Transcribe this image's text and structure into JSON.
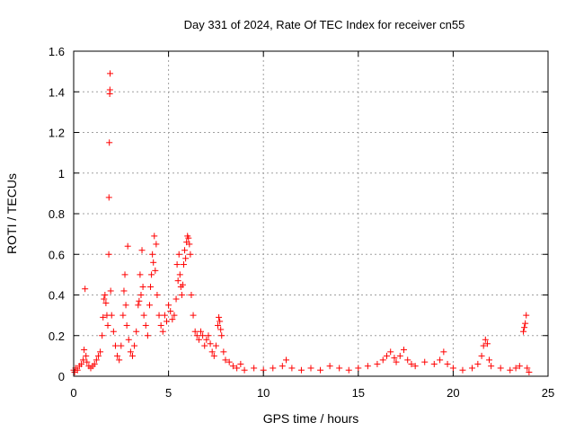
{
  "chart_data": {
    "type": "scatter",
    "title": "Day 331 of 2024, Rate Of TEC Index for receiver cn55",
    "xlabel": "GPS time / hours",
    "ylabel": "ROTI / TECUs",
    "xlim": [
      0,
      25
    ],
    "ylim": [
      0,
      1.6
    ],
    "xticks": [
      "0",
      "5",
      "10",
      "15",
      "20",
      "25"
    ],
    "yticks": [
      "0",
      "0.2",
      "0.4",
      "0.6",
      "0.8",
      "1",
      "1.2",
      "1.4",
      "1.6"
    ],
    "grid": true,
    "marker": "+",
    "color": "#ff0000",
    "series": [
      {
        "name": "ROTI",
        "points": [
          [
            0.0,
            0.03
          ],
          [
            0.05,
            0.02
          ],
          [
            0.1,
            0.04
          ],
          [
            0.2,
            0.03
          ],
          [
            0.3,
            0.05
          ],
          [
            0.4,
            0.06
          ],
          [
            0.5,
            0.08
          ],
          [
            0.55,
            0.13
          ],
          [
            0.6,
            0.43
          ],
          [
            0.65,
            0.1
          ],
          [
            0.7,
            0.07
          ],
          [
            0.8,
            0.05
          ],
          [
            0.9,
            0.04
          ],
          [
            1.0,
            0.05
          ],
          [
            1.1,
            0.06
          ],
          [
            1.2,
            0.08
          ],
          [
            1.3,
            0.1
          ],
          [
            1.4,
            0.12
          ],
          [
            1.5,
            0.2
          ],
          [
            1.55,
            0.29
          ],
          [
            1.6,
            0.38
          ],
          [
            1.65,
            0.4
          ],
          [
            1.7,
            0.36
          ],
          [
            1.75,
            0.3
          ],
          [
            1.8,
            0.25
          ],
          [
            1.85,
            0.6
          ],
          [
            1.86,
            0.88
          ],
          [
            1.88,
            1.15
          ],
          [
            1.9,
            1.39
          ],
          [
            1.91,
            1.41
          ],
          [
            1.92,
            1.49
          ],
          [
            1.95,
            0.42
          ],
          [
            2.0,
            0.3
          ],
          [
            2.1,
            0.22
          ],
          [
            2.2,
            0.15
          ],
          [
            2.3,
            0.1
          ],
          [
            2.4,
            0.08
          ],
          [
            2.5,
            0.15
          ],
          [
            2.6,
            0.3
          ],
          [
            2.65,
            0.42
          ],
          [
            2.7,
            0.5
          ],
          [
            2.75,
            0.35
          ],
          [
            2.8,
            0.25
          ],
          [
            2.85,
            0.64
          ],
          [
            2.9,
            0.18
          ],
          [
            3.0,
            0.12
          ],
          [
            3.1,
            0.1
          ],
          [
            3.2,
            0.15
          ],
          [
            3.3,
            0.22
          ],
          [
            3.4,
            0.35
          ],
          [
            3.45,
            0.37
          ],
          [
            3.5,
            0.5
          ],
          [
            3.55,
            0.4
          ],
          [
            3.6,
            0.62
          ],
          [
            3.65,
            0.44
          ],
          [
            3.7,
            0.3
          ],
          [
            3.8,
            0.25
          ],
          [
            3.9,
            0.2
          ],
          [
            4.0,
            0.35
          ],
          [
            4.05,
            0.44
          ],
          [
            4.1,
            0.5
          ],
          [
            4.15,
            0.6
          ],
          [
            4.2,
            0.56
          ],
          [
            4.25,
            0.69
          ],
          [
            4.3,
            0.52
          ],
          [
            4.35,
            0.65
          ],
          [
            4.4,
            0.4
          ],
          [
            4.5,
            0.3
          ],
          [
            4.6,
            0.25
          ],
          [
            4.7,
            0.22
          ],
          [
            4.8,
            0.3
          ],
          [
            4.9,
            0.27
          ],
          [
            5.0,
            0.35
          ],
          [
            5.1,
            0.32
          ],
          [
            5.2,
            0.28
          ],
          [
            5.3,
            0.3
          ],
          [
            5.4,
            0.38
          ],
          [
            5.45,
            0.55
          ],
          [
            5.5,
            0.47
          ],
          [
            5.55,
            0.6
          ],
          [
            5.6,
            0.5
          ],
          [
            5.65,
            0.44
          ],
          [
            5.7,
            0.4
          ],
          [
            5.75,
            0.45
          ],
          [
            5.8,
            0.55
          ],
          [
            5.85,
            0.62
          ],
          [
            5.9,
            0.58
          ],
          [
            5.95,
            0.66
          ],
          [
            6.0,
            0.69
          ],
          [
            6.05,
            0.68
          ],
          [
            6.1,
            0.65
          ],
          [
            6.15,
            0.6
          ],
          [
            6.2,
            0.4
          ],
          [
            6.3,
            0.3
          ],
          [
            6.4,
            0.22
          ],
          [
            6.5,
            0.2
          ],
          [
            6.6,
            0.18
          ],
          [
            6.7,
            0.22
          ],
          [
            6.8,
            0.2
          ],
          [
            6.9,
            0.15
          ],
          [
            7.0,
            0.18
          ],
          [
            7.1,
            0.2
          ],
          [
            7.2,
            0.16
          ],
          [
            7.3,
            0.12
          ],
          [
            7.4,
            0.1
          ],
          [
            7.5,
            0.15
          ],
          [
            7.6,
            0.25
          ],
          [
            7.65,
            0.29
          ],
          [
            7.7,
            0.27
          ],
          [
            7.75,
            0.23
          ],
          [
            7.8,
            0.2
          ],
          [
            7.9,
            0.12
          ],
          [
            8.0,
            0.08
          ],
          [
            8.2,
            0.07
          ],
          [
            8.4,
            0.05
          ],
          [
            8.6,
            0.04
          ],
          [
            8.8,
            0.06
          ],
          [
            9.0,
            0.03
          ],
          [
            9.5,
            0.04
          ],
          [
            10.0,
            0.03
          ],
          [
            10.5,
            0.04
          ],
          [
            11.0,
            0.05
          ],
          [
            11.2,
            0.08
          ],
          [
            11.5,
            0.04
          ],
          [
            12.0,
            0.03
          ],
          [
            12.5,
            0.04
          ],
          [
            13.0,
            0.03
          ],
          [
            13.5,
            0.05
          ],
          [
            14.0,
            0.04
          ],
          [
            14.5,
            0.03
          ],
          [
            15.0,
            0.04
          ],
          [
            15.5,
            0.05
          ],
          [
            16.0,
            0.06
          ],
          [
            16.3,
            0.08
          ],
          [
            16.5,
            0.1
          ],
          [
            16.7,
            0.12
          ],
          [
            16.9,
            0.09
          ],
          [
            17.0,
            0.07
          ],
          [
            17.2,
            0.1
          ],
          [
            17.4,
            0.13
          ],
          [
            17.6,
            0.08
          ],
          [
            17.8,
            0.06
          ],
          [
            18.0,
            0.05
          ],
          [
            18.5,
            0.07
          ],
          [
            19.0,
            0.06
          ],
          [
            19.3,
            0.08
          ],
          [
            19.5,
            0.12
          ],
          [
            19.7,
            0.06
          ],
          [
            20.0,
            0.04
          ],
          [
            20.5,
            0.03
          ],
          [
            21.0,
            0.04
          ],
          [
            21.3,
            0.06
          ],
          [
            21.5,
            0.1
          ],
          [
            21.6,
            0.15
          ],
          [
            21.7,
            0.18
          ],
          [
            21.8,
            0.16
          ],
          [
            21.9,
            0.08
          ],
          [
            22.0,
            0.05
          ],
          [
            22.5,
            0.04
          ],
          [
            23.0,
            0.03
          ],
          [
            23.3,
            0.04
          ],
          [
            23.5,
            0.05
          ],
          [
            23.7,
            0.22
          ],
          [
            23.75,
            0.24
          ],
          [
            23.8,
            0.26
          ],
          [
            23.85,
            0.3
          ],
          [
            23.9,
            0.04
          ],
          [
            24.0,
            0.02
          ]
        ]
      }
    ]
  }
}
